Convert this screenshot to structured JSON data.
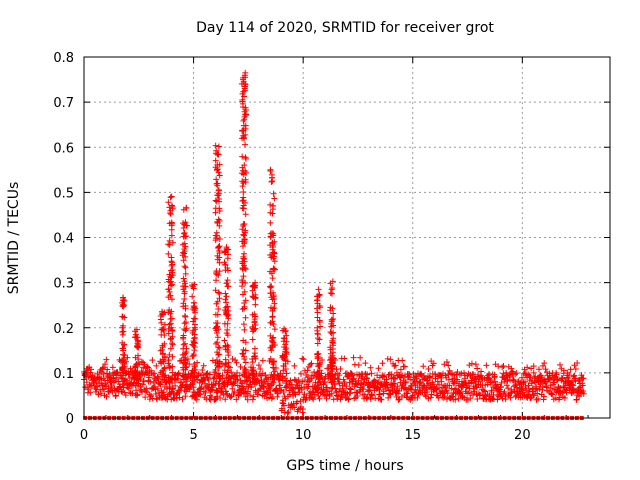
{
  "chart_data": {
    "type": "scatter",
    "title": "Day 114 of 2020, SRMTID for receiver grot",
    "xlabel": "GPS time / hours",
    "ylabel": "SRMTID / TECUs",
    "xlim": [
      0,
      24
    ],
    "ylim": [
      0,
      0.8
    ],
    "xticks": [
      0,
      5,
      10,
      15,
      20
    ],
    "yticks": [
      0,
      0.1,
      0.2,
      0.3,
      0.4,
      0.5,
      0.6,
      0.7,
      0.8
    ],
    "xtick_labels": [
      "0",
      "5",
      "10",
      "15",
      "20"
    ],
    "ytick_labels": [
      "0",
      "0.1",
      "0.2",
      "0.3",
      "0.4",
      "0.5",
      "0.6",
      "0.7",
      "0.8"
    ],
    "grid": true,
    "series_color": "#ff0000",
    "marker": "plus",
    "x_span_hours": [
      0,
      22.8
    ],
    "spike_envelope": [
      {
        "x": 0.0,
        "y": 0.1
      },
      {
        "x": 1.8,
        "y": 0.27
      },
      {
        "x": 2.5,
        "y": 0.2
      },
      {
        "x": 3.5,
        "y": 0.24
      },
      {
        "x": 4.0,
        "y": 0.5
      },
      {
        "x": 4.6,
        "y": 0.47
      },
      {
        "x": 6.1,
        "y": 0.61
      },
      {
        "x": 7.3,
        "y": 0.77
      },
      {
        "x": 8.7,
        "y": 0.56
      },
      {
        "x": 9.3,
        "y": 0.2
      },
      {
        "x": 10.7,
        "y": 0.29
      },
      {
        "x": 11.3,
        "y": 0.31
      },
      {
        "x": 13.0,
        "y": 0.14
      },
      {
        "x": 15.0,
        "y": 0.13
      },
      {
        "x": 18.0,
        "y": 0.12
      },
      {
        "x": 22.8,
        "y": 0.12
      }
    ],
    "baseline_markers_y": 0
  }
}
